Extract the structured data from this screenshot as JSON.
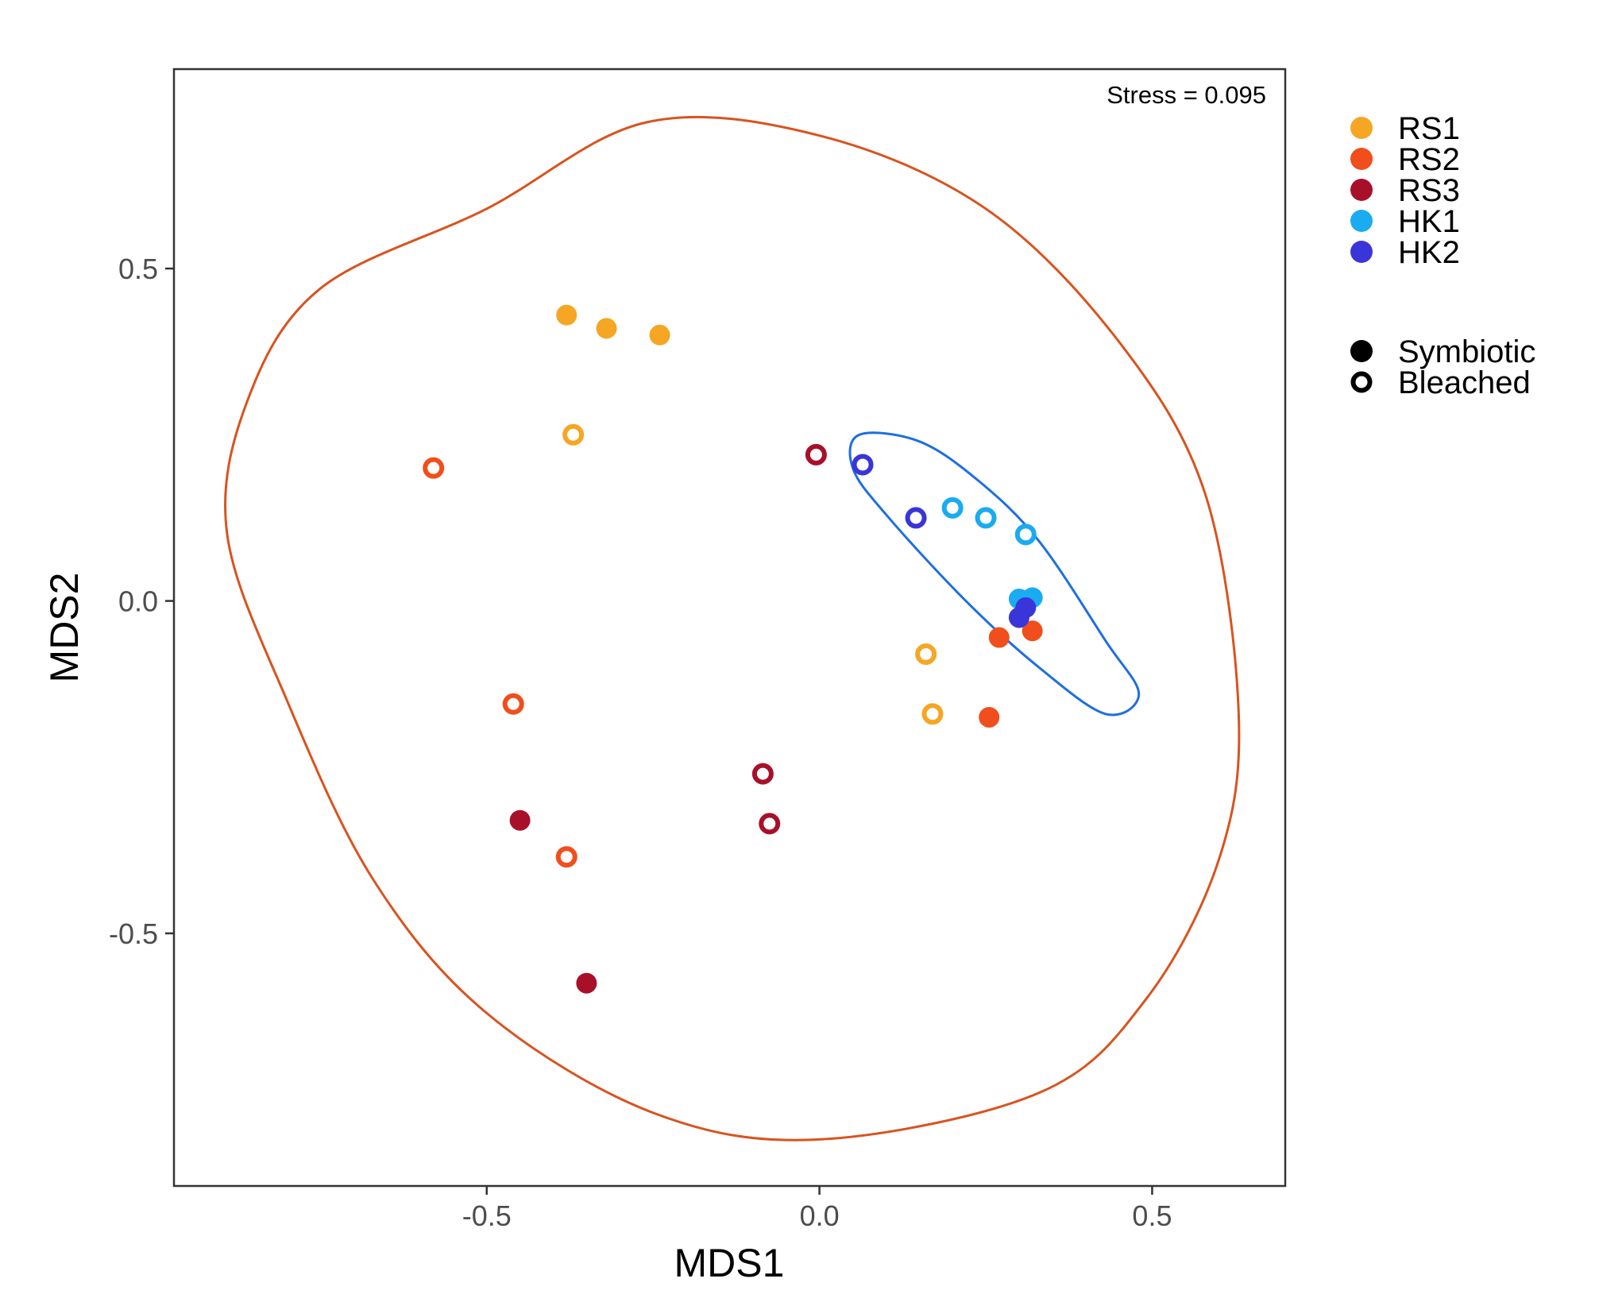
{
  "chart_data": {
    "type": "scatter",
    "title": "",
    "xlabel": "MDS1",
    "ylabel": "MDS2",
    "xlim": [
      -0.97,
      0.7
    ],
    "ylim": [
      -0.88,
      0.8
    ],
    "x_ticks": [
      -0.5,
      0.0,
      0.5
    ],
    "x_tick_labels": [
      "-0.5",
      "0.0",
      "0.5"
    ],
    "y_ticks": [
      -0.5,
      0.0,
      0.5
    ],
    "y_tick_labels": [
      "-0.5",
      "0.0",
      "0.5"
    ],
    "grid": false,
    "annotation": "Stress = 0.095",
    "legend_position": "right",
    "series": [
      {
        "name": "RS1",
        "color": "#F5A623",
        "points": [
          {
            "x": -0.38,
            "y": 0.43,
            "type": "Symbiotic"
          },
          {
            "x": -0.32,
            "y": 0.41,
            "type": "Symbiotic"
          },
          {
            "x": -0.24,
            "y": 0.4,
            "type": "Symbiotic"
          },
          {
            "x": -0.37,
            "y": 0.25,
            "type": "Bleached"
          },
          {
            "x": 0.16,
            "y": -0.08,
            "type": "Bleached"
          },
          {
            "x": 0.17,
            "y": -0.17,
            "type": "Bleached"
          }
        ]
      },
      {
        "name": "RS2",
        "color": "#F04E1C",
        "points": [
          {
            "x": -0.58,
            "y": 0.2,
            "type": "Bleached"
          },
          {
            "x": -0.46,
            "y": -0.155,
            "type": "Bleached"
          },
          {
            "x": -0.38,
            "y": -0.385,
            "type": "Bleached"
          },
          {
            "x": 0.27,
            "y": -0.055,
            "type": "Symbiotic"
          },
          {
            "x": 0.32,
            "y": -0.045,
            "type": "Symbiotic"
          },
          {
            "x": 0.255,
            "y": -0.175,
            "type": "Symbiotic"
          }
        ]
      },
      {
        "name": "RS3",
        "color": "#A8102A",
        "points": [
          {
            "x": -0.005,
            "y": 0.22,
            "type": "Bleached"
          },
          {
            "x": -0.085,
            "y": -0.26,
            "type": "Bleached"
          },
          {
            "x": -0.075,
            "y": -0.335,
            "type": "Bleached"
          },
          {
            "x": -0.45,
            "y": -0.33,
            "type": "Symbiotic"
          },
          {
            "x": -0.35,
            "y": -0.575,
            "type": "Symbiotic"
          }
        ]
      },
      {
        "name": "HK1",
        "color": "#1AABF0",
        "points": [
          {
            "x": 0.2,
            "y": 0.14,
            "type": "Bleached"
          },
          {
            "x": 0.25,
            "y": 0.125,
            "type": "Bleached"
          },
          {
            "x": 0.31,
            "y": 0.1,
            "type": "Bleached"
          },
          {
            "x": 0.3,
            "y": 0.003,
            "type": "Symbiotic"
          },
          {
            "x": 0.32,
            "y": 0.005,
            "type": "Symbiotic"
          }
        ]
      },
      {
        "name": "HK2",
        "color": "#3A35D8",
        "points": [
          {
            "x": 0.065,
            "y": 0.205,
            "type": "Bleached"
          },
          {
            "x": 0.145,
            "y": 0.125,
            "type": "Bleached"
          },
          {
            "x": 0.3,
            "y": -0.025,
            "type": "Symbiotic"
          },
          {
            "x": 0.31,
            "y": -0.01,
            "type": "Symbiotic"
          }
        ]
      }
    ],
    "ellipses": [
      {
        "group": "RS",
        "color": "#D9531E",
        "points": [
          [
            -0.5,
            0.59
          ],
          [
            -0.26,
            0.72
          ],
          [
            0.0,
            0.7
          ],
          [
            0.25,
            0.59
          ],
          [
            0.45,
            0.39
          ],
          [
            0.58,
            0.16
          ],
          [
            0.63,
            -0.17
          ],
          [
            0.6,
            -0.39
          ],
          [
            0.49,
            -0.6
          ],
          [
            0.33,
            -0.74
          ],
          [
            0.0,
            -0.81
          ],
          [
            -0.25,
            -0.77
          ],
          [
            -0.5,
            -0.62
          ],
          [
            -0.67,
            -0.42
          ],
          [
            -0.8,
            -0.15
          ],
          [
            -0.89,
            0.1
          ],
          [
            -0.86,
            0.3
          ],
          [
            -0.75,
            0.47
          ]
        ]
      },
      {
        "group": "HK",
        "color": "#1E6FE0",
        "points": [
          [
            0.06,
            0.25
          ],
          [
            0.15,
            0.24
          ],
          [
            0.24,
            0.18
          ],
          [
            0.33,
            0.09
          ],
          [
            0.43,
            -0.06
          ],
          [
            0.48,
            -0.14
          ],
          [
            0.43,
            -0.17
          ],
          [
            0.33,
            -0.1
          ],
          [
            0.22,
            0.0
          ],
          [
            0.1,
            0.13
          ],
          [
            0.05,
            0.2
          ]
        ]
      }
    ],
    "legend_colors": [
      {
        "label": "RS1",
        "color": "#F5A623"
      },
      {
        "label": "RS2",
        "color": "#F04E1C"
      },
      {
        "label": "RS3",
        "color": "#A8102A"
      },
      {
        "label": "HK1",
        "color": "#1AABF0"
      },
      {
        "label": "HK2",
        "color": "#3A35D8"
      }
    ],
    "legend_shapes": [
      {
        "label": "Symbiotic",
        "fill": "solid"
      },
      {
        "label": "Bleached",
        "fill": "hollow"
      }
    ]
  }
}
